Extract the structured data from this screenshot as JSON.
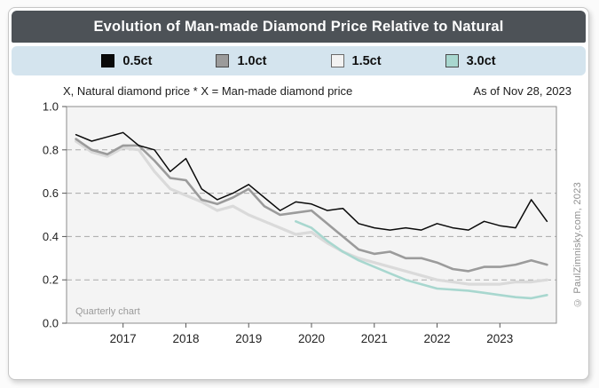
{
  "title": "Evolution of Man-made Diamond Price Relative to Natural",
  "legend": {
    "items": [
      {
        "label": "0.5ct",
        "swatch": "#0a0a0a",
        "border": "#000000"
      },
      {
        "label": "1.0ct",
        "swatch": "#9b9b9b",
        "border": "#4a4a4a"
      },
      {
        "label": "1.5ct",
        "swatch": "#f2f2f2",
        "border": "#6a6a6a"
      },
      {
        "label": "3.0ct",
        "swatch": "#a8d7cf",
        "border": "#4a4a4a"
      }
    ]
  },
  "subtitle_left": "X, Natural diamond price * X = Man-made diamond price",
  "subtitle_right": "As of Nov 28, 2023",
  "footnote": "Quarterly chart",
  "copyright": "© PaulZimnisky.com, 2023",
  "chart_data": {
    "type": "line",
    "title": "Evolution of Man-made Diamond Price Relative to Natural",
    "xlabel": "",
    "ylabel": "",
    "xlim": [
      2016.1,
      2023.9
    ],
    "ylim": [
      0.0,
      1.0
    ],
    "xticks": [
      2017,
      2018,
      2019,
      2020,
      2021,
      2022,
      2023
    ],
    "yticks": [
      0.0,
      0.2,
      0.4,
      0.6,
      0.8,
      1.0
    ],
    "grid": "dashed-horizontal",
    "legend_position": "top",
    "plot_bg": "#f4f4f4",
    "grid_color": "#a9a9a9",
    "border_color": "#8c8c8c",
    "x": [
      2016.25,
      2016.5,
      2016.75,
      2017.0,
      2017.25,
      2017.5,
      2017.75,
      2018.0,
      2018.25,
      2018.5,
      2018.75,
      2019.0,
      2019.25,
      2019.5,
      2019.75,
      2020.0,
      2020.25,
      2020.5,
      2020.75,
      2021.0,
      2021.25,
      2021.5,
      2021.75,
      2022.0,
      2022.25,
      2022.5,
      2022.75,
      2023.0,
      2023.25,
      2023.5,
      2023.75
    ],
    "series": [
      {
        "name": "1.5ct",
        "color": "#dadada",
        "width": 3.2,
        "values": [
          0.84,
          0.79,
          0.77,
          0.81,
          0.8,
          0.7,
          0.62,
          0.59,
          0.56,
          0.52,
          0.54,
          0.5,
          0.47,
          0.44,
          0.41,
          0.42,
          0.37,
          0.33,
          0.3,
          0.28,
          0.26,
          0.24,
          0.22,
          0.2,
          0.19,
          0.18,
          0.18,
          0.18,
          0.19,
          0.19,
          0.2
        ]
      },
      {
        "name": "1.0ct",
        "color": "#9b9b9b",
        "width": 2.6,
        "values": [
          0.85,
          0.8,
          0.78,
          0.82,
          0.82,
          0.75,
          0.67,
          0.66,
          0.57,
          0.55,
          0.58,
          0.62,
          0.54,
          0.5,
          0.51,
          0.52,
          0.46,
          0.4,
          0.34,
          0.32,
          0.33,
          0.3,
          0.3,
          0.28,
          0.25,
          0.24,
          0.26,
          0.26,
          0.27,
          0.29,
          0.27
        ]
      },
      {
        "name": "3.0ct",
        "color": "#a8d7cf",
        "width": 2.6,
        "values": [
          null,
          null,
          null,
          null,
          null,
          null,
          null,
          null,
          null,
          null,
          null,
          null,
          null,
          null,
          0.47,
          0.44,
          0.38,
          0.33,
          0.29,
          0.26,
          0.23,
          0.2,
          0.18,
          0.16,
          0.155,
          0.15,
          0.14,
          0.13,
          0.12,
          0.115,
          0.13
        ]
      },
      {
        "name": "0.5ct",
        "color": "#0a0a0a",
        "width": 1.5,
        "values": [
          0.87,
          0.84,
          0.86,
          0.88,
          0.82,
          0.8,
          0.7,
          0.76,
          0.62,
          0.57,
          0.6,
          0.64,
          0.58,
          0.52,
          0.56,
          0.55,
          0.52,
          0.53,
          0.46,
          0.44,
          0.43,
          0.44,
          0.43,
          0.46,
          0.44,
          0.43,
          0.47,
          0.45,
          0.44,
          0.57,
          0.47
        ]
      }
    ]
  }
}
